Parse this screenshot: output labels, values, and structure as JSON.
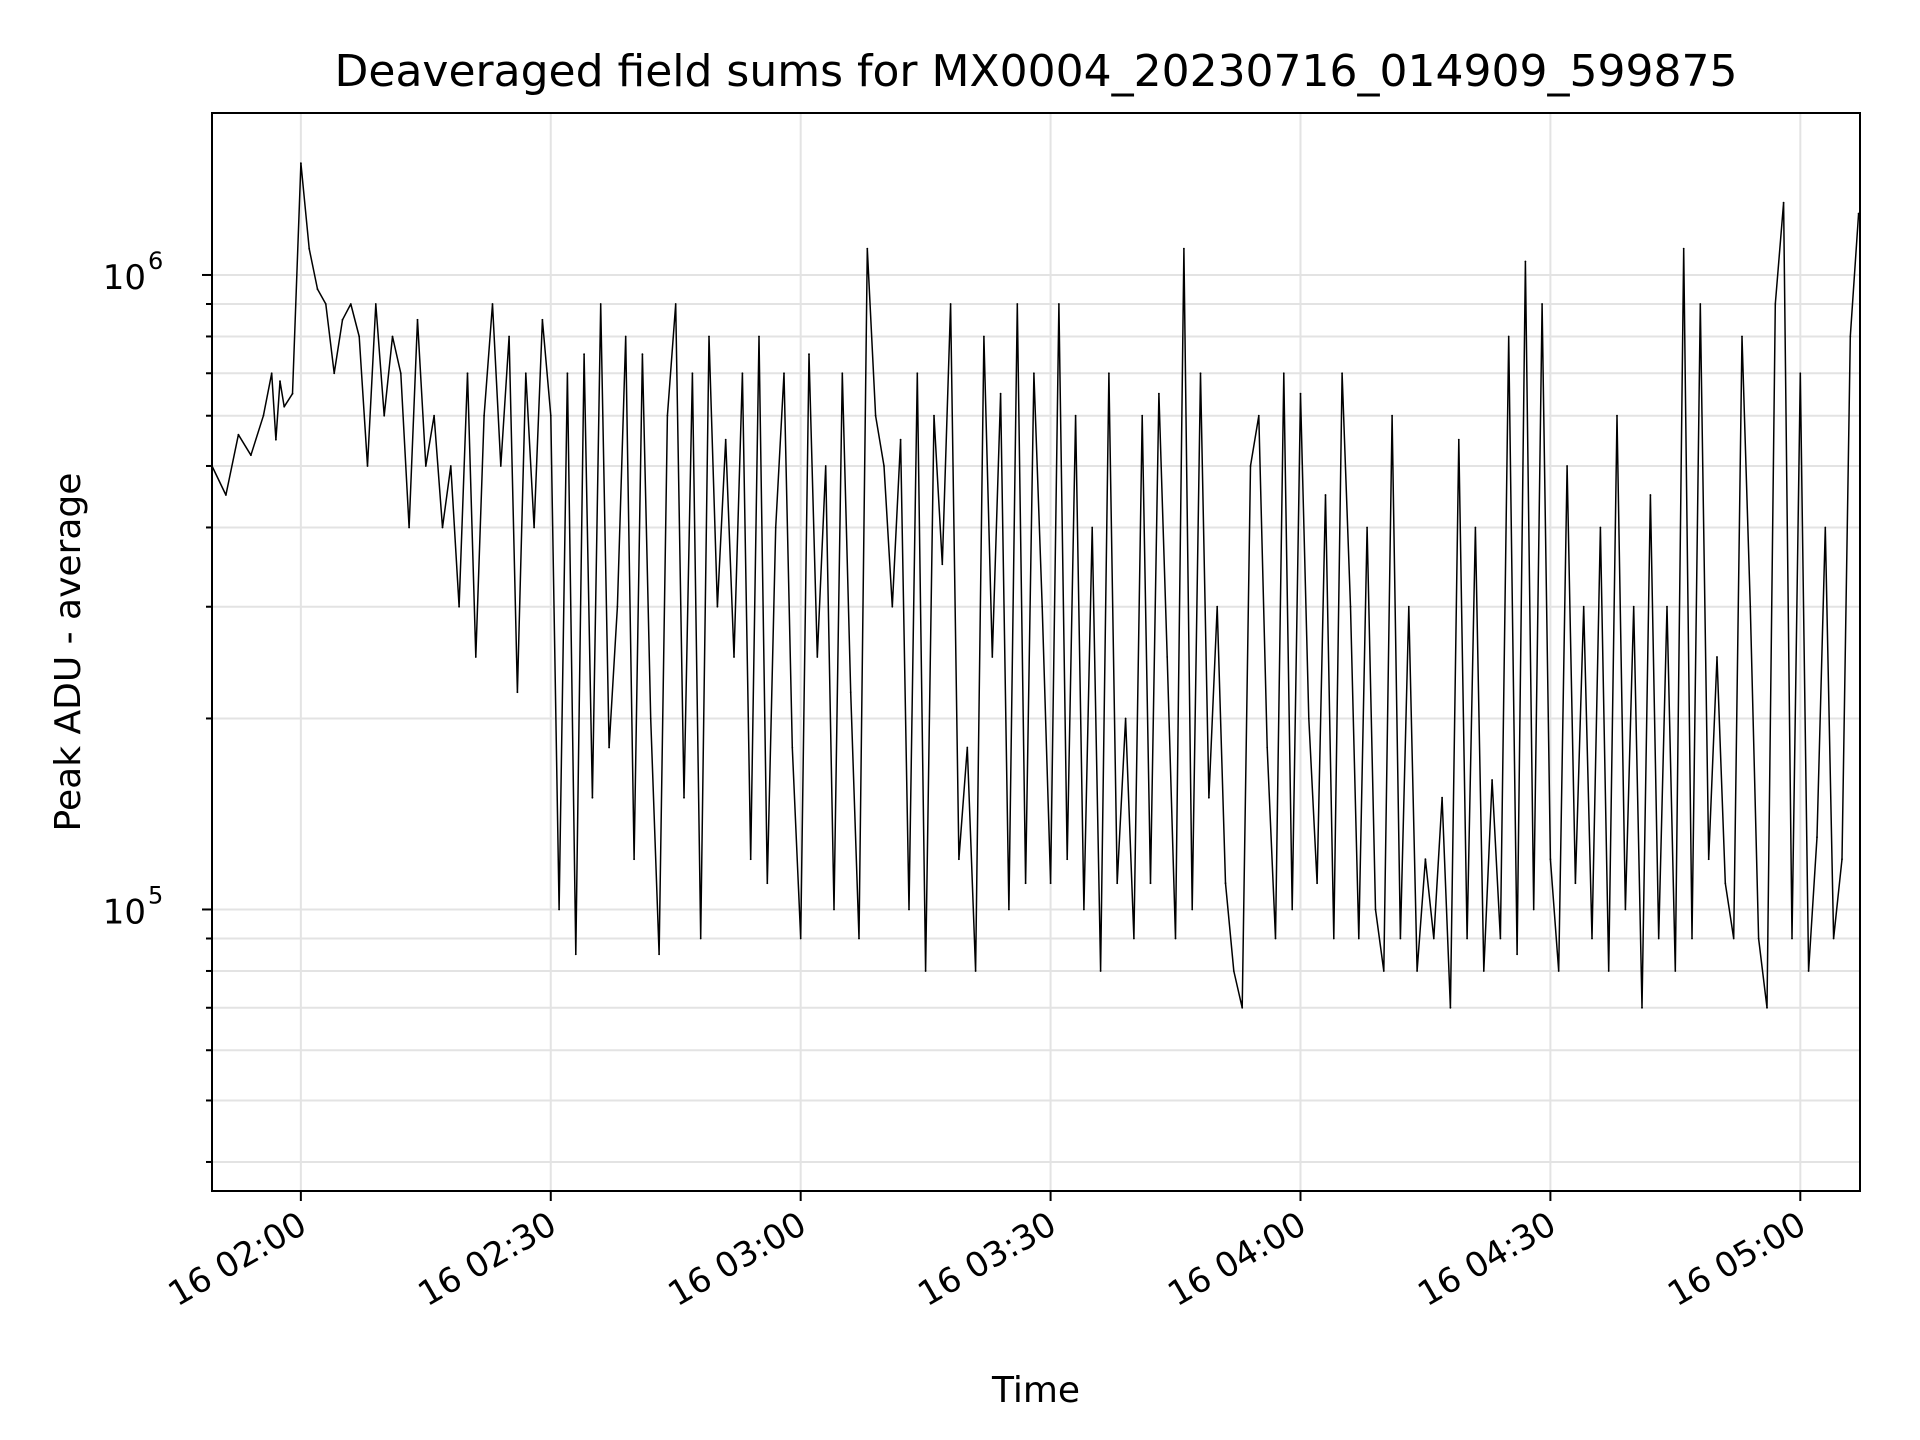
{
  "chart_data": {
    "type": "line",
    "title": "Deaveraged field sums for MX0004_20230716_014909_599875",
    "xlabel": "Time",
    "ylabel": "Peak ADU - average",
    "y_scale": "log",
    "ylim": [
      36000,
      1800000
    ],
    "xlim": [
      "2023-07-16 01:49:20",
      "2023-07-16 05:07:10"
    ],
    "grid": true,
    "line_color": "#000000",
    "x_ticks": [
      {
        "value": "2023-07-16 02:00",
        "label": "16 02:00"
      },
      {
        "value": "2023-07-16 02:30",
        "label": "16 02:30"
      },
      {
        "value": "2023-07-16 03:00",
        "label": "16 03:00"
      },
      {
        "value": "2023-07-16 03:30",
        "label": "16 03:30"
      },
      {
        "value": "2023-07-16 04:00",
        "label": "16 04:00"
      },
      {
        "value": "2023-07-16 04:30",
        "label": "16 04:30"
      },
      {
        "value": "2023-07-16 05:00",
        "label": "16 05:00"
      }
    ],
    "y_ticks": [
      {
        "value": 100000,
        "base": "10",
        "exponent": "5"
      },
      {
        "value": 1000000,
        "base": "10",
        "exponent": "6"
      }
    ],
    "series": [
      {
        "x": [
          "2023-07-16 01:49:20",
          "2023-07-16 01:51:00",
          "2023-07-16 01:52:30",
          "2023-07-16 01:54:00",
          "2023-07-16 01:55:30",
          "2023-07-16 01:56:30",
          "2023-07-16 01:57:00",
          "2023-07-16 01:57:30",
          "2023-07-16 01:58:00",
          "2023-07-16 01:59:00",
          "2023-07-16 02:00:00",
          "2023-07-16 02:01:00",
          "2023-07-16 02:02:00",
          "2023-07-16 02:03:00",
          "2023-07-16 02:04:00",
          "2023-07-16 02:05:00",
          "2023-07-16 02:06:00",
          "2023-07-16 02:07:00",
          "2023-07-16 02:08:00",
          "2023-07-16 02:09:00",
          "2023-07-16 02:10:00",
          "2023-07-16 02:11:00",
          "2023-07-16 02:12:00",
          "2023-07-16 02:13:00",
          "2023-07-16 02:14:00",
          "2023-07-16 02:15:00",
          "2023-07-16 02:16:00",
          "2023-07-16 02:17:00",
          "2023-07-16 02:18:00",
          "2023-07-16 02:19:00",
          "2023-07-16 02:20:00",
          "2023-07-16 02:21:00",
          "2023-07-16 02:22:00",
          "2023-07-16 02:23:00",
          "2023-07-16 02:24:00",
          "2023-07-16 02:25:00",
          "2023-07-16 02:26:00",
          "2023-07-16 02:27:00",
          "2023-07-16 02:28:00",
          "2023-07-16 02:29:00",
          "2023-07-16 02:30:00",
          "2023-07-16 02:31:00",
          "2023-07-16 02:32:00",
          "2023-07-16 02:33:00",
          "2023-07-16 02:34:00",
          "2023-07-16 02:35:00",
          "2023-07-16 02:36:00",
          "2023-07-16 02:37:00",
          "2023-07-16 02:38:00",
          "2023-07-16 02:39:00",
          "2023-07-16 02:40:00",
          "2023-07-16 02:41:00",
          "2023-07-16 02:42:00",
          "2023-07-16 02:43:00",
          "2023-07-16 02:44:00",
          "2023-07-16 02:45:00",
          "2023-07-16 02:46:00",
          "2023-07-16 02:47:00",
          "2023-07-16 02:48:00",
          "2023-07-16 02:49:00",
          "2023-07-16 02:50:00",
          "2023-07-16 02:51:00",
          "2023-07-16 02:52:00",
          "2023-07-16 02:53:00",
          "2023-07-16 02:54:00",
          "2023-07-16 02:55:00",
          "2023-07-16 02:56:00",
          "2023-07-16 02:57:00",
          "2023-07-16 02:58:00",
          "2023-07-16 02:59:00",
          "2023-07-16 03:00:00",
          "2023-07-16 03:01:00",
          "2023-07-16 03:02:00",
          "2023-07-16 03:03:00",
          "2023-07-16 03:04:00",
          "2023-07-16 03:05:00",
          "2023-07-16 03:06:00",
          "2023-07-16 03:07:00",
          "2023-07-16 03:08:00",
          "2023-07-16 03:09:00",
          "2023-07-16 03:10:00",
          "2023-07-16 03:11:00",
          "2023-07-16 03:12:00",
          "2023-07-16 03:13:00",
          "2023-07-16 03:14:00",
          "2023-07-16 03:15:00",
          "2023-07-16 03:16:00",
          "2023-07-16 03:17:00",
          "2023-07-16 03:18:00",
          "2023-07-16 03:19:00",
          "2023-07-16 03:20:00",
          "2023-07-16 03:21:00",
          "2023-07-16 03:22:00",
          "2023-07-16 03:23:00",
          "2023-07-16 03:24:00",
          "2023-07-16 03:25:00",
          "2023-07-16 03:26:00",
          "2023-07-16 03:27:00",
          "2023-07-16 03:28:00",
          "2023-07-16 03:29:00",
          "2023-07-16 03:30:00",
          "2023-07-16 03:31:00",
          "2023-07-16 03:32:00",
          "2023-07-16 03:33:00",
          "2023-07-16 03:34:00",
          "2023-07-16 03:35:00",
          "2023-07-16 03:36:00",
          "2023-07-16 03:37:00",
          "2023-07-16 03:38:00",
          "2023-07-16 03:39:00",
          "2023-07-16 03:40:00",
          "2023-07-16 03:41:00",
          "2023-07-16 03:42:00",
          "2023-07-16 03:43:00",
          "2023-07-16 03:44:00",
          "2023-07-16 03:45:00",
          "2023-07-16 03:46:00",
          "2023-07-16 03:47:00",
          "2023-07-16 03:48:00",
          "2023-07-16 03:49:00",
          "2023-07-16 03:50:00",
          "2023-07-16 03:51:00",
          "2023-07-16 03:52:00",
          "2023-07-16 03:53:00",
          "2023-07-16 03:54:00",
          "2023-07-16 03:55:00",
          "2023-07-16 03:56:00",
          "2023-07-16 03:57:00",
          "2023-07-16 03:58:00",
          "2023-07-16 03:59:00",
          "2023-07-16 04:00:00",
          "2023-07-16 04:01:00",
          "2023-07-16 04:02:00",
          "2023-07-16 04:03:00",
          "2023-07-16 04:04:00",
          "2023-07-16 04:05:00",
          "2023-07-16 04:06:00",
          "2023-07-16 04:07:00",
          "2023-07-16 04:08:00",
          "2023-07-16 04:09:00",
          "2023-07-16 04:10:00",
          "2023-07-16 04:11:00",
          "2023-07-16 04:12:00",
          "2023-07-16 04:13:00",
          "2023-07-16 04:14:00",
          "2023-07-16 04:15:00",
          "2023-07-16 04:16:00",
          "2023-07-16 04:17:00",
          "2023-07-16 04:18:00",
          "2023-07-16 04:19:00",
          "2023-07-16 04:20:00",
          "2023-07-16 04:21:00",
          "2023-07-16 04:22:00",
          "2023-07-16 04:23:00",
          "2023-07-16 04:24:00",
          "2023-07-16 04:25:00",
          "2023-07-16 04:26:00",
          "2023-07-16 04:27:00",
          "2023-07-16 04:28:00",
          "2023-07-16 04:29:00",
          "2023-07-16 04:30:00",
          "2023-07-16 04:31:00",
          "2023-07-16 04:32:00",
          "2023-07-16 04:33:00",
          "2023-07-16 04:34:00",
          "2023-07-16 04:35:00",
          "2023-07-16 04:36:00",
          "2023-07-16 04:37:00",
          "2023-07-16 04:38:00",
          "2023-07-16 04:39:00",
          "2023-07-16 04:40:00",
          "2023-07-16 04:41:00",
          "2023-07-16 04:42:00",
          "2023-07-16 04:43:00",
          "2023-07-16 04:44:00",
          "2023-07-16 04:45:00",
          "2023-07-16 04:46:00",
          "2023-07-16 04:47:00",
          "2023-07-16 04:48:00",
          "2023-07-16 04:49:00",
          "2023-07-16 04:50:00",
          "2023-07-16 04:51:00",
          "2023-07-16 04:52:00",
          "2023-07-16 04:53:00",
          "2023-07-16 04:54:00",
          "2023-07-16 04:55:00",
          "2023-07-16 04:56:00",
          "2023-07-16 04:57:00",
          "2023-07-16 04:58:00",
          "2023-07-16 04:59:00",
          "2023-07-16 05:00:00",
          "2023-07-16 05:01:00",
          "2023-07-16 05:02:00",
          "2023-07-16 05:03:00",
          "2023-07-16 05:04:00",
          "2023-07-16 05:05:00",
          "2023-07-16 05:06:00",
          "2023-07-16 05:07:00"
        ],
        "y": [
          500000,
          450000,
          560000,
          520000,
          600000,
          700000,
          550000,
          680000,
          620000,
          650000,
          1500000,
          1100000,
          950000,
          900000,
          700000,
          850000,
          900000,
          800000,
          500000,
          900000,
          600000,
          800000,
          700000,
          400000,
          850000,
          500000,
          600000,
          400000,
          500000,
          300000,
          700000,
          250000,
          600000,
          900000,
          500000,
          800000,
          220000,
          700000,
          400000,
          850000,
          600000,
          100000,
          700000,
          85000,
          750000,
          150000,
          900000,
          180000,
          300000,
          800000,
          120000,
          750000,
          200000,
          85000,
          600000,
          900000,
          150000,
          700000,
          90000,
          800000,
          300000,
          550000,
          250000,
          700000,
          120000,
          800000,
          110000,
          400000,
          700000,
          180000,
          90000,
          750000,
          250000,
          500000,
          100000,
          700000,
          220000,
          90000,
          1100000,
          600000,
          500000,
          300000,
          550000,
          100000,
          700000,
          80000,
          600000,
          350000,
          900000,
          120000,
          180000,
          80000,
          800000,
          250000,
          650000,
          100000,
          900000,
          110000,
          700000,
          300000,
          110000,
          900000,
          120000,
          600000,
          100000,
          400000,
          80000,
          700000,
          110000,
          200000,
          90000,
          600000,
          110000,
          650000,
          250000,
          90000,
          1100000,
          100000,
          700000,
          150000,
          300000,
          110000,
          80000,
          70000,
          500000,
          600000,
          180000,
          90000,
          700000,
          100000,
          650000,
          200000,
          110000,
          450000,
          90000,
          700000,
          300000,
          90000,
          400000,
          100000,
          80000,
          600000,
          90000,
          300000,
          80000,
          120000,
          90000,
          150000,
          70000,
          550000,
          90000,
          400000,
          80000,
          160000,
          90000,
          800000,
          85000,
          1050000,
          100000,
          900000,
          120000,
          80000,
          500000,
          110000,
          300000,
          90000,
          400000,
          80000,
          600000,
          100000,
          300000,
          70000,
          450000,
          90000,
          300000,
          80000,
          1100000,
          90000,
          900000,
          120000,
          250000,
          110000,
          90000,
          800000,
          300000,
          90000,
          70000,
          900000,
          1300000,
          90000,
          700000,
          80000,
          130000,
          400000,
          90000,
          120000,
          800000,
          1250000
        ],
        "y_points": [
          500000,
          450000,
          560000,
          520000,
          600000,
          700000,
          550000,
          680000,
          620000,
          650000,
          1500000,
          1100000,
          950000,
          900000,
          700000,
          850000,
          900000,
          800000,
          500000,
          900000,
          600000,
          800000,
          700000,
          400000,
          850000,
          500000,
          600000,
          400000,
          500000,
          300000,
          700000,
          250000,
          600000,
          900000,
          500000,
          800000,
          220000,
          700000,
          400000,
          850000,
          600000,
          100000,
          700000,
          85000,
          750000,
          150000,
          900000,
          180000,
          300000,
          800000,
          120000,
          750000,
          200000,
          85000,
          600000,
          900000,
          150000,
          700000,
          90000,
          800000,
          300000,
          550000,
          250000,
          700000,
          120000,
          800000,
          110000,
          400000,
          700000,
          180000,
          90000,
          750000,
          250000,
          500000,
          100000,
          700000,
          220000,
          90000,
          1100000,
          600000,
          500000,
          300000,
          550000,
          100000,
          700000,
          80000,
          600000,
          350000,
          900000,
          120000,
          180000,
          80000,
          800000,
          250000,
          650000,
          100000,
          900000,
          110000,
          700000,
          300000,
          110000,
          900000,
          120000,
          600000,
          100000,
          400000,
          80000,
          700000,
          110000,
          200000,
          90000,
          600000,
          110000,
          650000,
          250000,
          90000,
          1100000,
          100000,
          700000,
          150000,
          300000,
          110000,
          80000,
          70000,
          500000,
          600000,
          180000,
          90000,
          700000,
          100000,
          650000,
          200000,
          110000,
          450000,
          90000,
          700000,
          300000,
          90000,
          400000,
          100000,
          80000,
          600000,
          90000,
          300000,
          80000,
          120000,
          90000,
          150000,
          70000,
          550000,
          90000,
          400000,
          80000,
          160000,
          90000,
          800000,
          85000,
          1050000,
          100000,
          900000,
          120000,
          80000,
          500000,
          110000,
          300000,
          90000,
          400000,
          80000,
          600000,
          100000,
          300000,
          70000,
          450000,
          90000,
          300000,
          80000,
          1100000,
          90000,
          900000,
          120000,
          250000,
          110000,
          90000,
          800000,
          300000,
          90000,
          70000,
          900000,
          1300000,
          90000,
          700000,
          80000,
          130000,
          400000,
          90000,
          120000,
          800000,
          1250000
        ]
      }
    ]
  }
}
